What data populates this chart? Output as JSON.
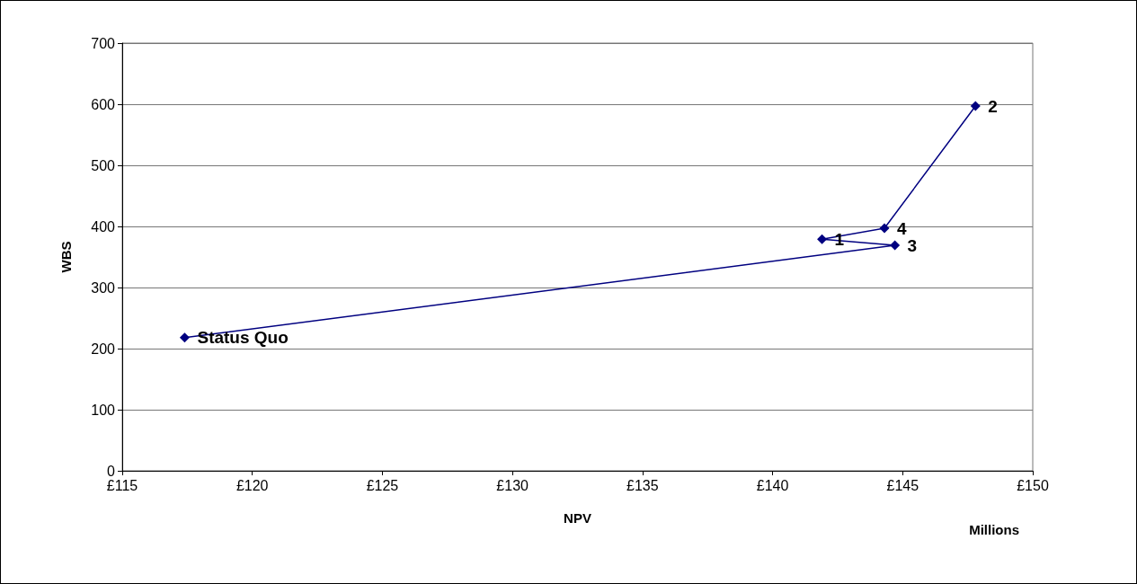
{
  "chart_data": {
    "type": "line",
    "xlabel": "NPV",
    "ylabel": "WBS",
    "annotations": [
      "Millions",
      {
        "text": "Status Quo",
        "x": 117.4,
        "y": 218
      },
      {
        "text": "3",
        "x": 144.7,
        "y": 369
      },
      {
        "text": "1",
        "x": 141.9,
        "y": 379
      },
      {
        "text": "4",
        "x": 144.3,
        "y": 397
      },
      {
        "text": "2",
        "x": 147.8,
        "y": 597
      }
    ],
    "x": [
      117.4,
      144.7,
      141.9,
      144.3,
      147.8
    ],
    "series": [
      {
        "color": "#000080",
        "values": [
          218,
          369,
          379,
          397,
          597
        ]
      }
    ],
    "xlim": [
      115,
      150
    ],
    "xticks": [
      {
        "value": 115,
        "label": "£115"
      },
      {
        "value": 120,
        "label": "£120"
      },
      {
        "value": 125,
        "label": "£125"
      },
      {
        "value": 130,
        "label": "£130"
      },
      {
        "value": 135,
        "label": "£135"
      },
      {
        "value": 140,
        "label": "£140"
      },
      {
        "value": 145,
        "label": "£145"
      },
      {
        "value": 150,
        "label": "£150"
      }
    ],
    "ylim": [
      0,
      700
    ],
    "yticks": [
      0,
      100,
      200,
      300,
      400,
      500,
      600,
      700
    ],
    "grid": "y",
    "marker": "diamond",
    "line_style": "solid"
  }
}
